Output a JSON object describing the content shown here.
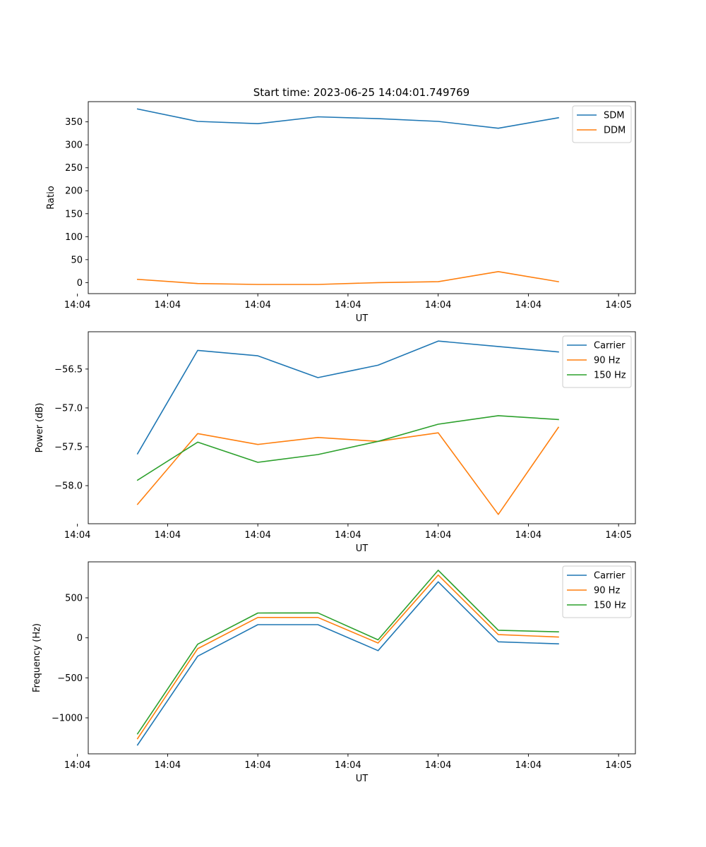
{
  "figure": {
    "title": "Start time: 2023-06-25 14:04:01.749769"
  },
  "chart_data": [
    {
      "type": "line",
      "title": "Start time: 2023-06-25 14:04:01.749769",
      "xlabel": "UT",
      "ylabel": "Ratio",
      "x": [
        1,
        2,
        3,
        4,
        5,
        6,
        7,
        8
      ],
      "xlim": [
        0.18,
        9.28
      ],
      "x_ticks": [
        0,
        1.5,
        3,
        4.5,
        6,
        7.5,
        9
      ],
      "x_tick_labels": [
        "14:04",
        "14:04",
        "14:04",
        "14:04",
        "14:04",
        "14:04",
        "14:05"
      ],
      "ylim": [
        -24,
        394
      ],
      "y_ticks": [
        0,
        50,
        100,
        150,
        200,
        250,
        300,
        350
      ],
      "y_tick_labels": [
        "0",
        "50",
        "100",
        "150",
        "200",
        "250",
        "300",
        "350"
      ],
      "grid": false,
      "legend_position": "top-right",
      "series": [
        {
          "name": "SDM",
          "color": "#1f77b4",
          "values": [
            378,
            351,
            346,
            361,
            357,
            351,
            336,
            359
          ]
        },
        {
          "name": "DDM",
          "color": "#ff7f0e",
          "values": [
            7,
            -2,
            -4,
            -4,
            0,
            2,
            24,
            2
          ]
        }
      ]
    },
    {
      "type": "line",
      "xlabel": "UT",
      "ylabel": "Power (dB)",
      "x": [
        1,
        2,
        3,
        4,
        5,
        6,
        7,
        8
      ],
      "xlim": [
        0.18,
        9.28
      ],
      "x_ticks": [
        0,
        1.5,
        3,
        4.5,
        6,
        7.5,
        9
      ],
      "x_tick_labels": [
        "14:04",
        "14:04",
        "14:04",
        "14:04",
        "14:04",
        "14:04",
        "14:05"
      ],
      "ylim": [
        -58.49,
        -56.02
      ],
      "y_ticks": [
        -58.0,
        -57.5,
        -57.0,
        -56.5
      ],
      "y_tick_labels": [
        "−58.0",
        "−57.5",
        "−57.0",
        "−56.5"
      ],
      "grid": false,
      "legend_position": "top-right",
      "series": [
        {
          "name": "Carrier",
          "color": "#1f77b4",
          "values": [
            -57.59,
            -56.26,
            -56.33,
            -56.61,
            -56.45,
            -56.14,
            -56.21,
            -56.28
          ]
        },
        {
          "name": "90 Hz",
          "color": "#ff7f0e",
          "values": [
            -58.24,
            -57.33,
            -57.47,
            -57.38,
            -57.43,
            -57.32,
            -58.37,
            -57.25
          ]
        },
        {
          "name": "150 Hz",
          "color": "#2ca02c",
          "values": [
            -57.93,
            -57.44,
            -57.7,
            -57.6,
            -57.43,
            -57.21,
            -57.1,
            -57.15
          ]
        }
      ]
    },
    {
      "type": "line",
      "xlabel": "UT",
      "ylabel": "Frequency (Hz)",
      "x": [
        1,
        2,
        3,
        4,
        5,
        6,
        7,
        8
      ],
      "xlim": [
        0.18,
        9.28
      ],
      "x_ticks": [
        0,
        1.5,
        3,
        4.5,
        6,
        7.5,
        9
      ],
      "x_tick_labels": [
        "14:04",
        "14:04",
        "14:04",
        "14:04",
        "14:04",
        "14:04",
        "14:05"
      ],
      "ylim": [
        -1450,
        950
      ],
      "y_ticks": [
        -1000,
        -500,
        0,
        500
      ],
      "y_tick_labels": [
        "−1000",
        "−500",
        "0",
        "500"
      ],
      "grid": false,
      "legend_position": "top-right",
      "series": [
        {
          "name": "Carrier",
          "color": "#1f77b4",
          "values": [
            -1340,
            -230,
            165,
            165,
            -160,
            700,
            -50,
            -75
          ]
        },
        {
          "name": "90 Hz",
          "color": "#ff7f0e",
          "values": [
            -1260,
            -135,
            255,
            255,
            -65,
            785,
            40,
            10
          ]
        },
        {
          "name": "150 Hz",
          "color": "#2ca02c",
          "values": [
            -1200,
            -80,
            310,
            312,
            -25,
            845,
            95,
            75
          ]
        }
      ]
    }
  ]
}
